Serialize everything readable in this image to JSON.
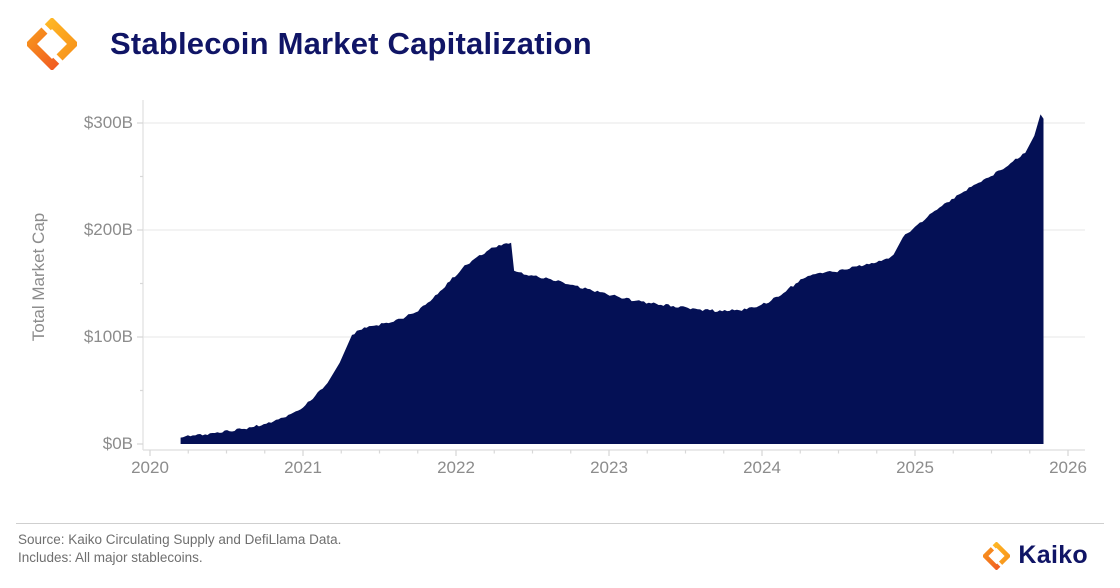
{
  "header": {
    "title": "Stablecoin Market Capitalization",
    "logo": "kaiko-diamond-icon"
  },
  "footer": {
    "source_line1": "Source: Kaiko Circulating Supply and DefiLlama Data.",
    "source_line2": "Includes: All major stablecoins.",
    "brand": "Kaiko",
    "brand_logo": "kaiko-diamond-icon"
  },
  "colors": {
    "area_fill": "#041055",
    "brand_navy": "#101566",
    "axis_label_gray": "#8c8c8c",
    "footer_gray": "#6f6f6f",
    "gridline": "#efefef",
    "axis_line": "#e3e3e3",
    "tick": "#d8d8d8",
    "logo_yellow": "#FFC32B",
    "logo_orange": "#F7941D",
    "logo_red_orange": "#F04E23",
    "background": "#ffffff"
  },
  "chart_data": {
    "type": "area",
    "title": "Stablecoin Market Capitalization",
    "xlabel": "",
    "ylabel": "Total Market Cap",
    "unit": "USD billions",
    "grid": "horizontal-only",
    "legend": "none",
    "xlim": [
      2019.95,
      2026.33
    ],
    "ylim": [
      0,
      320
    ],
    "x_ticks": [
      {
        "label": "2020",
        "value": 2020
      },
      {
        "label": "2021",
        "value": 2021
      },
      {
        "label": "2022",
        "value": 2022
      },
      {
        "label": "2023",
        "value": 2023
      },
      {
        "label": "2024",
        "value": 2024
      },
      {
        "label": "2025",
        "value": 2025
      },
      {
        "label": "2026",
        "value": 2026
      }
    ],
    "y_ticks": [
      {
        "label": "$0B",
        "value": 0
      },
      {
        "label": "$100B",
        "value": 100
      },
      {
        "label": "$200B",
        "value": 200
      },
      {
        "label": "$300B",
        "value": 300
      }
    ],
    "series": [
      {
        "name": "Total stablecoin market cap ($B)",
        "color": "#041055",
        "points": [
          [
            2020.2,
            6
          ],
          [
            2020.28,
            8
          ],
          [
            2020.36,
            9
          ],
          [
            2020.44,
            11
          ],
          [
            2020.52,
            12
          ],
          [
            2020.6,
            14
          ],
          [
            2020.68,
            16
          ],
          [
            2020.76,
            19
          ],
          [
            2020.84,
            23
          ],
          [
            2020.92,
            28
          ],
          [
            2021.0,
            34
          ],
          [
            2021.08,
            45
          ],
          [
            2021.16,
            57
          ],
          [
            2021.24,
            76
          ],
          [
            2021.32,
            102
          ],
          [
            2021.4,
            109
          ],
          [
            2021.48,
            111
          ],
          [
            2021.56,
            113
          ],
          [
            2021.64,
            117
          ],
          [
            2021.72,
            122
          ],
          [
            2021.8,
            130
          ],
          [
            2021.88,
            140
          ],
          [
            2021.96,
            152
          ],
          [
            2022.04,
            164
          ],
          [
            2022.12,
            173
          ],
          [
            2022.2,
            180
          ],
          [
            2022.28,
            186
          ],
          [
            2022.36,
            188
          ],
          [
            2022.38,
            162
          ],
          [
            2022.46,
            158
          ],
          [
            2022.54,
            156
          ],
          [
            2022.62,
            154
          ],
          [
            2022.7,
            151
          ],
          [
            2022.78,
            148
          ],
          [
            2022.86,
            145
          ],
          [
            2022.94,
            142
          ],
          [
            2023.02,
            139
          ],
          [
            2023.1,
            136
          ],
          [
            2023.18,
            134
          ],
          [
            2023.26,
            132
          ],
          [
            2023.34,
            130
          ],
          [
            2023.42,
            129
          ],
          [
            2023.5,
            128
          ],
          [
            2023.58,
            126
          ],
          [
            2023.66,
            125
          ],
          [
            2023.74,
            124
          ],
          [
            2023.82,
            125
          ],
          [
            2023.9,
            126
          ],
          [
            2023.98,
            129
          ],
          [
            2024.06,
            134
          ],
          [
            2024.14,
            141
          ],
          [
            2024.22,
            150
          ],
          [
            2024.3,
            157
          ],
          [
            2024.38,
            160
          ],
          [
            2024.46,
            161
          ],
          [
            2024.54,
            163
          ],
          [
            2024.62,
            166
          ],
          [
            2024.7,
            168
          ],
          [
            2024.78,
            171
          ],
          [
            2024.86,
            177
          ],
          [
            2024.92,
            193
          ],
          [
            2025.0,
            203
          ],
          [
            2025.08,
            212
          ],
          [
            2025.16,
            221
          ],
          [
            2025.24,
            229
          ],
          [
            2025.32,
            236
          ],
          [
            2025.4,
            243
          ],
          [
            2025.48,
            249
          ],
          [
            2025.56,
            256
          ],
          [
            2025.64,
            264
          ],
          [
            2025.72,
            272
          ],
          [
            2025.78,
            288
          ],
          [
            2025.82,
            308
          ],
          [
            2025.84,
            304
          ]
        ]
      }
    ]
  }
}
